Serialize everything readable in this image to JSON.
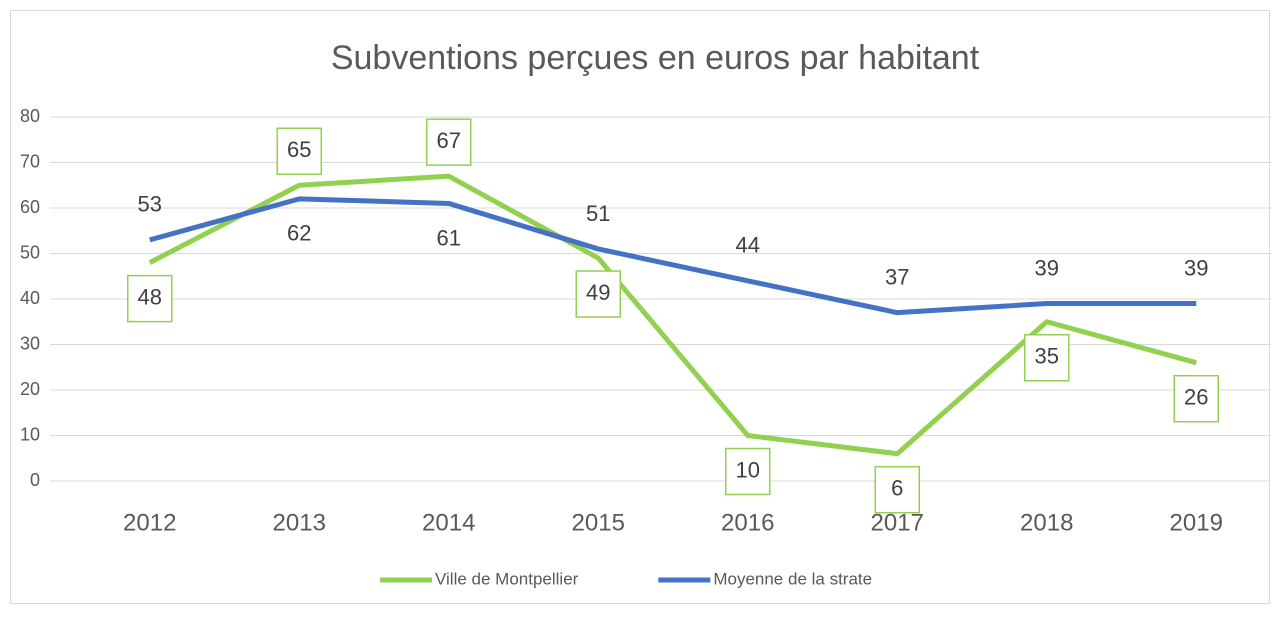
{
  "chart_data": {
    "type": "line",
    "title": "Subventions perçues en euros par habitant",
    "categories": [
      "2012",
      "2013",
      "2014",
      "2015",
      "2016",
      "2017",
      "2018",
      "2019"
    ],
    "series": [
      {
        "name": "Ville de Montpellier",
        "color": "#92d050",
        "values": [
          48,
          65,
          67,
          49,
          10,
          6,
          35,
          26
        ]
      },
      {
        "name": "Moyenne de la strate",
        "color": "#4472c4",
        "values": [
          53,
          62,
          61,
          51,
          44,
          37,
          39,
          39
        ]
      }
    ],
    "ylim": [
      0,
      80
    ],
    "yticks": [
      0,
      10,
      20,
      30,
      40,
      50,
      60,
      70,
      80
    ],
    "grid": true,
    "legend": "bottom"
  }
}
